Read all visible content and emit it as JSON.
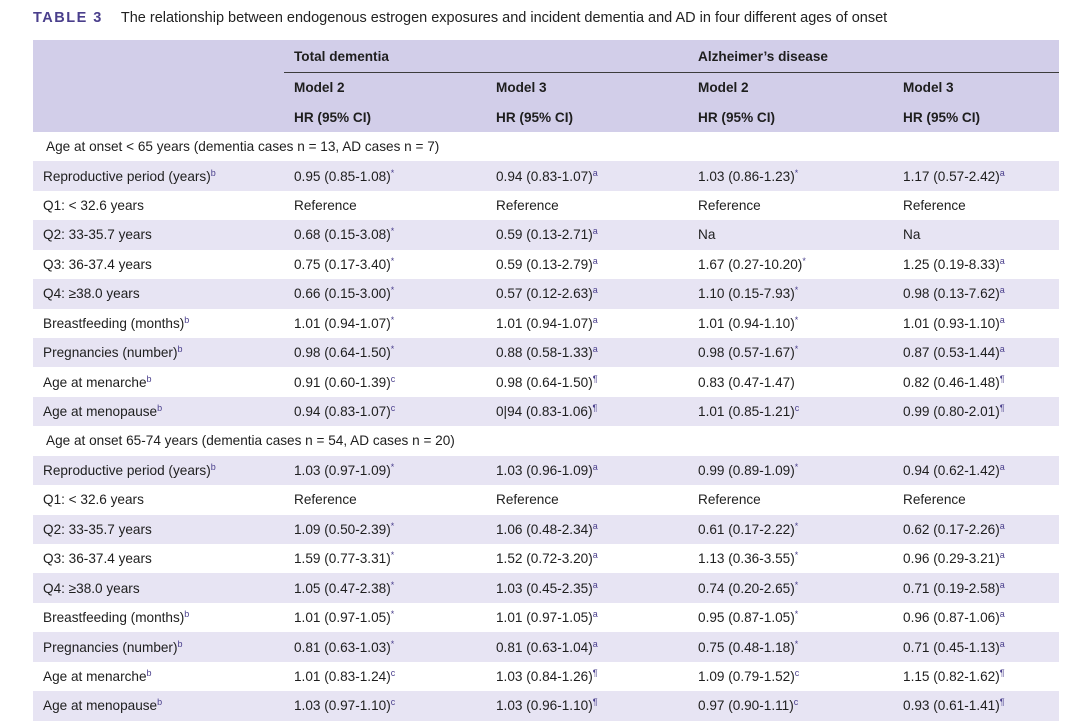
{
  "caption": {
    "label": "TABLE 3",
    "title": "The relationship between endogenous estrogen exposures and incident dementia and AD in four different ages of onset"
  },
  "header": {
    "group_total": "Total dementia",
    "group_ad": "Alzheimer’s disease",
    "models": [
      "Model 2",
      "Model 3",
      "Model 2",
      "Model 3"
    ],
    "metric": "HR (95% CI)"
  },
  "sections": [
    {
      "title": "Age at onset < 65 years (dementia cases n = 13, AD cases n = 7)",
      "rows": [
        {
          "label": "Reproductive period (years)",
          "label_sup": "b",
          "cells": [
            {
              "v": "0.95 (0.85-1.08)",
              "s": "*"
            },
            {
              "v": "0.94 (0.83-1.07)",
              "s": "a"
            },
            {
              "v": "1.03 (0.86-1.23)",
              "s": "*"
            },
            {
              "v": "1.17 (0.57-2.42)",
              "s": "a"
            }
          ]
        },
        {
          "label": "Q1: < 32.6 years",
          "label_sup": "",
          "cells": [
            {
              "v": "Reference",
              "s": ""
            },
            {
              "v": "Reference",
              "s": ""
            },
            {
              "v": "Reference",
              "s": ""
            },
            {
              "v": "Reference",
              "s": ""
            }
          ]
        },
        {
          "label": "Q2: 33-35.7 years",
          "label_sup": "",
          "cells": [
            {
              "v": "0.68 (0.15-3.08)",
              "s": "*"
            },
            {
              "v": "0.59 (0.13-2.71)",
              "s": "a"
            },
            {
              "v": "Na",
              "s": ""
            },
            {
              "v": "Na",
              "s": ""
            }
          ]
        },
        {
          "label": "Q3: 36-37.4 years",
          "label_sup": "",
          "cells": [
            {
              "v": "0.75 (0.17-3.40)",
              "s": "*"
            },
            {
              "v": "0.59 (0.13-2.79)",
              "s": "a"
            },
            {
              "v": "1.67 (0.27-10.20)",
              "s": "*"
            },
            {
              "v": "1.25 (0.19-8.33)",
              "s": "a"
            }
          ]
        },
        {
          "label": "Q4: ≥38.0 years",
          "label_sup": "",
          "cells": [
            {
              "v": "0.66 (0.15-3.00)",
              "s": "*"
            },
            {
              "v": "0.57 (0.12-2.63)",
              "s": "a"
            },
            {
              "v": "1.10 (0.15-7.93)",
              "s": "*"
            },
            {
              "v": "0.98 (0.13-7.62)",
              "s": "a"
            }
          ]
        },
        {
          "label": "Breastfeeding (months)",
          "label_sup": "b",
          "cells": [
            {
              "v": "1.01 (0.94-1.07)",
              "s": "*"
            },
            {
              "v": "1.01 (0.94-1.07)",
              "s": "a"
            },
            {
              "v": "1.01 (0.94-1.10)",
              "s": "*"
            },
            {
              "v": "1.01 (0.93-1.10)",
              "s": "a"
            }
          ]
        },
        {
          "label": "Pregnancies (number)",
          "label_sup": "b",
          "cells": [
            {
              "v": "0.98 (0.64-1.50)",
              "s": "*"
            },
            {
              "v": "0.88 (0.58-1.33)",
              "s": "a"
            },
            {
              "v": "0.98 (0.57-1.67)",
              "s": "*"
            },
            {
              "v": "0.87 (0.53-1.44)",
              "s": "a"
            }
          ]
        },
        {
          "label": "Age at menarche",
          "label_sup": "b",
          "cells": [
            {
              "v": "0.91 (0.60-1.39)",
              "s": "c"
            },
            {
              "v": "0.98 (0.64-1.50)",
              "s": "¶"
            },
            {
              "v": "0.83 (0.47-1.47)",
              "s": ""
            },
            {
              "v": "0.82 (0.46-1.48)",
              "s": "¶"
            }
          ]
        },
        {
          "label": "Age at menopause",
          "label_sup": "b",
          "cells": [
            {
              "v": "0.94 (0.83-1.07)",
              "s": "c"
            },
            {
              "v": "0|94 (0.83-1.06)",
              "s": "¶"
            },
            {
              "v": "1.01 (0.85-1.21)",
              "s": "c"
            },
            {
              "v": "0.99 (0.80-2.01)",
              "s": "¶"
            }
          ]
        }
      ]
    },
    {
      "title": "Age at onset 65-74 years (dementia cases n = 54, AD cases n = 20)",
      "rows": [
        {
          "label": "Reproductive period (years)",
          "label_sup": "b",
          "cells": [
            {
              "v": "1.03 (0.97-1.09)",
              "s": "*"
            },
            {
              "v": "1.03 (0.96-1.09)",
              "s": "a"
            },
            {
              "v": "0.99 (0.89-1.09)",
              "s": "*"
            },
            {
              "v": "0.94 (0.62-1.42)",
              "s": "a"
            }
          ]
        },
        {
          "label": "Q1: < 32.6 years",
          "label_sup": "",
          "cells": [
            {
              "v": "Reference",
              "s": ""
            },
            {
              "v": "Reference",
              "s": ""
            },
            {
              "v": "Reference",
              "s": ""
            },
            {
              "v": "Reference",
              "s": ""
            }
          ]
        },
        {
          "label": "Q2: 33-35.7 years",
          "label_sup": "",
          "cells": [
            {
              "v": "1.09 (0.50-2.39)",
              "s": "*"
            },
            {
              "v": "1.06 (0.48-2.34)",
              "s": "a"
            },
            {
              "v": "0.61 (0.17-2.22)",
              "s": "*"
            },
            {
              "v": "0.62 (0.17-2.26)",
              "s": "a"
            }
          ]
        },
        {
          "label": "Q3: 36-37.4 years",
          "label_sup": "",
          "cells": [
            {
              "v": "1.59 (0.77-3.31)",
              "s": "*"
            },
            {
              "v": "1.52 (0.72-3.20)",
              "s": "a"
            },
            {
              "v": "1.13 (0.36-3.55)",
              "s": "*"
            },
            {
              "v": "0.96 (0.29-3.21)",
              "s": "a"
            }
          ]
        },
        {
          "label": "Q4: ≥38.0 years",
          "label_sup": "",
          "cells": [
            {
              "v": "1.05 (0.47-2.38)",
              "s": "*"
            },
            {
              "v": "1.03 (0.45-2.35)",
              "s": "a"
            },
            {
              "v": "0.74 (0.20-2.65)",
              "s": "*"
            },
            {
              "v": "0.71 (0.19-2.58)",
              "s": "a"
            }
          ]
        },
        {
          "label": "Breastfeeding (months)",
          "label_sup": "b",
          "cells": [
            {
              "v": "1.01 (0.97-1.05)",
              "s": "*"
            },
            {
              "v": "1.01 (0.97-1.05)",
              "s": "a"
            },
            {
              "v": "0.95 (0.87-1.05)",
              "s": "*"
            },
            {
              "v": "0.96 (0.87-1.06)",
              "s": "a"
            }
          ]
        },
        {
          "label": "Pregnancies (number)",
          "label_sup": "b",
          "cells": [
            {
              "v": "0.81 (0.63-1.03)",
              "s": "*"
            },
            {
              "v": "0.81 (0.63-1.04)",
              "s": "a"
            },
            {
              "v": "0.75 (0.48-1.18)",
              "s": "*"
            },
            {
              "v": "0.71 (0.45-1.13)",
              "s": "a"
            }
          ]
        },
        {
          "label": "Age at menarche",
          "label_sup": "b",
          "cells": [
            {
              "v": "1.01 (0.83-1.24)",
              "s": "c"
            },
            {
              "v": "1.03 (0.84-1.26)",
              "s": "¶"
            },
            {
              "v": "1.09 (0.79-1.52)",
              "s": "c"
            },
            {
              "v": "1.15 (0.82-1.62)",
              "s": "¶"
            }
          ]
        },
        {
          "label": "Age at menopause",
          "label_sup": "b",
          "cells": [
            {
              "v": "1.03 (0.97-1.10)",
              "s": "c"
            },
            {
              "v": "1.03 (0.96-1.10)",
              "s": "¶"
            },
            {
              "v": "0.97 (0.90-1.11)",
              "s": "c"
            },
            {
              "v": "0.93 (0.61-1.41)",
              "s": "¶"
            }
          ]
        }
      ]
    }
  ]
}
